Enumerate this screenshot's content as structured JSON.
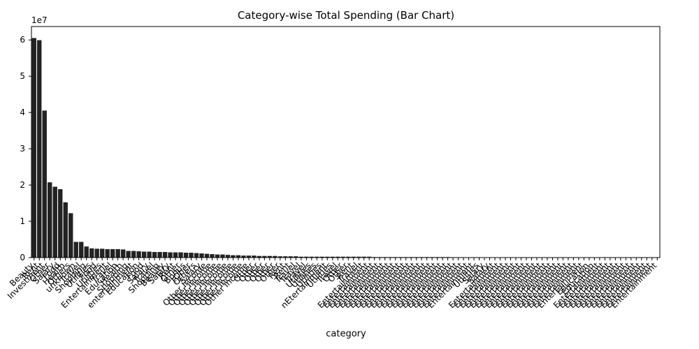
{
  "chart_data": {
    "type": "bar",
    "title": "Category-wise Total Spending (Bar Chart)",
    "x_label": "category",
    "y_offset_label": "1e7",
    "color": "#222222",
    "ylim": [
      0,
      6.37
    ],
    "yticks": [
      0,
      1,
      2,
      3,
      4,
      5,
      6
    ],
    "grid": false,
    "categories": [
      "Beauty",
      "Rent",
      "Investment",
      "Other",
      "Salary",
      "Food",
      "Health",
      "Others",
      "unknown",
      "Travel",
      "Shopping",
      "Utilities",
      "Food",
      "Utilities",
      "Entertainment",
      "Travel",
      "Education",
      "Health",
      "Shopping",
      "entertainment",
      "Education",
      "Food",
      "Salary",
      "Travel",
      "Shopping",
      "Beauty",
      "Salary",
      "Rent",
      "Other",
      "Bonus",
      "tOher",
      "Others",
      "Salary",
      "Other Income",
      "Other Income",
      "Other Income",
      "Other Income",
      "Other Income",
      "Other Income",
      "Other Income",
      "Other Income",
      "Other Income",
      "Other",
      "Other",
      "Other",
      "Other",
      "Other",
      "Other",
      "Rent",
      "Rent",
      "Travel",
      "Travel",
      "Travel",
      "Utilities",
      "Utilities",
      "Utilities",
      "nEtertainment",
      "Utilities",
      "Travel",
      "Other",
      "Other",
      "Rent",
      "Travel",
      "Entertainment",
      "Entertainment",
      "Entertainment",
      "Entertainment",
      "Entertainment",
      "Entertainment",
      "Entertainment",
      "Entertainment",
      "Entertainment",
      "Entertainment",
      "Entertainment",
      "Entertainment",
      "Entertainment",
      "Entertainment",
      "Entertainment",
      "Entertainment",
      "Entertainment",
      "Entertainment",
      "Entertainment",
      "Entertainment",
      "Entertainment",
      "Entertainment",
      "Utilities",
      "Salary",
      "Salary",
      "Entertainment",
      "Entertainment",
      "Entertainment",
      "Entertainment",
      "Entertainment",
      "Entertainment",
      "Entertainment",
      "Entertainment",
      "Entertainment",
      "Entertainment",
      "Entertainment",
      "Entertainment",
      "Entertainment",
      "Entertainment",
      "Entertainment",
      "Entertainment",
      "Entertainment",
      "Entertainment",
      "Education",
      "Education",
      "Entertainment",
      "Entertainment",
      "Entertainment",
      "Entertainment",
      "Entertainment",
      "Entertainment",
      "Entertainment",
      "Entertainment",
      "Entertainment",
      "Entertainment",
      "Entertainment",
      "Entertainment"
    ],
    "values": [
      6.05,
      5.99,
      4.05,
      2.07,
      1.95,
      1.88,
      1.52,
      1.22,
      0.43,
      0.43,
      0.3,
      0.25,
      0.24,
      0.24,
      0.23,
      0.23,
      0.23,
      0.22,
      0.18,
      0.18,
      0.17,
      0.16,
      0.16,
      0.15,
      0.15,
      0.15,
      0.14,
      0.14,
      0.14,
      0.13,
      0.13,
      0.12,
      0.11,
      0.1,
      0.09,
      0.08,
      0.08,
      0.07,
      0.06,
      0.06,
      0.05,
      0.05,
      0.05,
      0.04,
      0.04,
      0.04,
      0.04,
      0.03,
      0.03,
      0.03,
      0.03,
      0.02,
      0.02,
      0.02,
      0.02,
      0.02,
      0.02,
      0.02,
      0.02,
      0.02,
      0.02,
      0.02,
      0.02,
      0.02,
      0.02,
      0.01,
      0.01,
      0.01,
      0.01,
      0.01,
      0.01,
      0.01,
      0.01,
      0.01,
      0.01,
      0.01,
      0.01,
      0.01,
      0.01,
      0.01,
      0.005,
      0.005,
      0.005,
      0.005,
      0.005,
      0.005,
      0.005,
      0.005,
      0.005,
      0.005,
      0.005,
      0.005,
      0.005,
      0.005,
      0.005,
      0.005,
      0.005,
      0.005,
      0.005,
      0.005,
      0.002,
      0.002,
      0.002,
      0.002,
      0.002,
      0.002,
      0.002,
      0.002,
      0.002,
      0.002,
      0.002,
      0.002,
      0.002,
      0.002,
      0.002,
      0.002,
      0.002,
      0.002,
      0.002,
      0.002
    ]
  }
}
